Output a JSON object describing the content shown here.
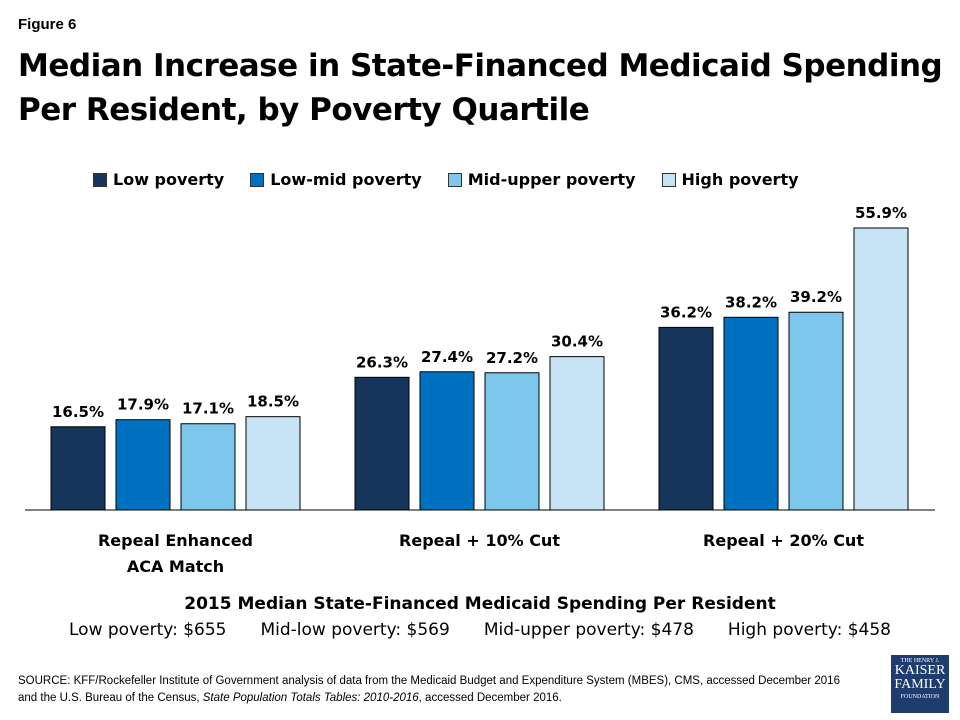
{
  "figure_label": "Figure 6",
  "title": "Median Increase in State-Financed Medicaid Spending Per Resident, by Poverty Quartile",
  "chart_data": {
    "type": "bar",
    "categories": [
      "Repeal Enhanced ACA Match",
      "Repeal + 10% Cut",
      "Repeal + 20% Cut"
    ],
    "category_lines": [
      [
        "Repeal Enhanced",
        "ACA Match"
      ],
      [
        "Repeal + 10% Cut"
      ],
      [
        "Repeal + 20% Cut"
      ]
    ],
    "series": [
      {
        "name": "Low poverty",
        "color": "#15355a",
        "values": [
          16.5,
          26.3,
          36.2
        ]
      },
      {
        "name": "Low-mid poverty",
        "color": "#0070c0",
        "values": [
          17.9,
          27.4,
          38.2
        ]
      },
      {
        "name": "Mid-upper poverty",
        "color": "#7dc6ec",
        "values": [
          17.1,
          27.2,
          39.2
        ]
      },
      {
        "name": "High poverty",
        "color": "#c6e4f6",
        "values": [
          18.5,
          30.4,
          55.9
        ]
      }
    ],
    "value_suffix": "%",
    "ylim": [
      0,
      56
    ],
    "grid": false,
    "legend_position": "top"
  },
  "note": {
    "title": "2015 Median State-Financed Medicaid Spending Per Resident",
    "values": [
      "Low poverty: $655",
      "Mid-low poverty: $569",
      "Mid-upper poverty: $478",
      "High poverty: $458"
    ]
  },
  "source": {
    "line1": "SOURCE: KFF/Rockefeller Institute of Government analysis of data from the Medicaid Budget and Expenditure System (MBES), CMS, accessed December 2016",
    "line2_pre": "and the U.S. Bureau of the Census, ",
    "line2_italic": "State Population Totals Tables: 2010-2016",
    "line2_post": ", accessed December 2016."
  },
  "logo": [
    "THE HENRY J.",
    "KAISER",
    "FAMILY",
    "FOUNDATION"
  ]
}
